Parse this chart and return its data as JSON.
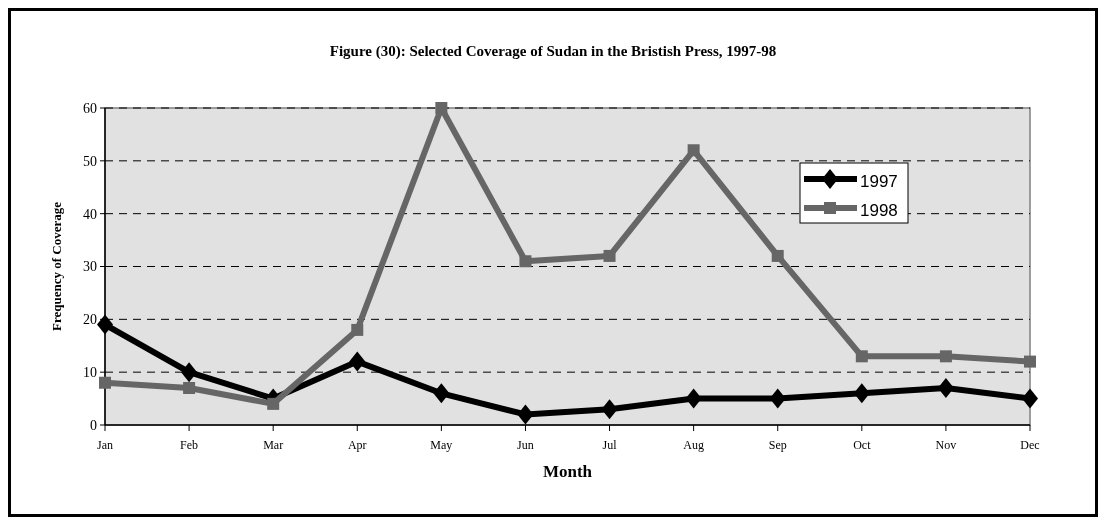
{
  "chart_data": {
    "type": "line",
    "title": "Figure (30): Selected Coverage of Sudan in the Bristish Press, 1997-98",
    "xlabel": "Month",
    "ylabel": "Frequency of Coverage",
    "categories": [
      "Jan",
      "Feb",
      "Mar",
      "Apr",
      "May",
      "Jun",
      "Jul",
      "Aug",
      "Sep",
      "Oct",
      "Nov",
      "Dec"
    ],
    "series": [
      {
        "name": "1997",
        "color": "#000000",
        "marker": "diamond",
        "values": [
          19,
          10,
          5,
          12,
          6,
          2,
          3,
          5,
          5,
          6,
          7,
          5
        ]
      },
      {
        "name": "1998",
        "color": "#666666",
        "marker": "square",
        "values": [
          8,
          7,
          4,
          18,
          60,
          31,
          32,
          52,
          32,
          13,
          13,
          12
        ]
      }
    ],
    "ylim": [
      0,
      60
    ],
    "yticks": [
      0,
      10,
      20,
      30,
      40,
      50,
      60
    ],
    "grid": "y",
    "legend": "top right",
    "line_style": "solid"
  }
}
